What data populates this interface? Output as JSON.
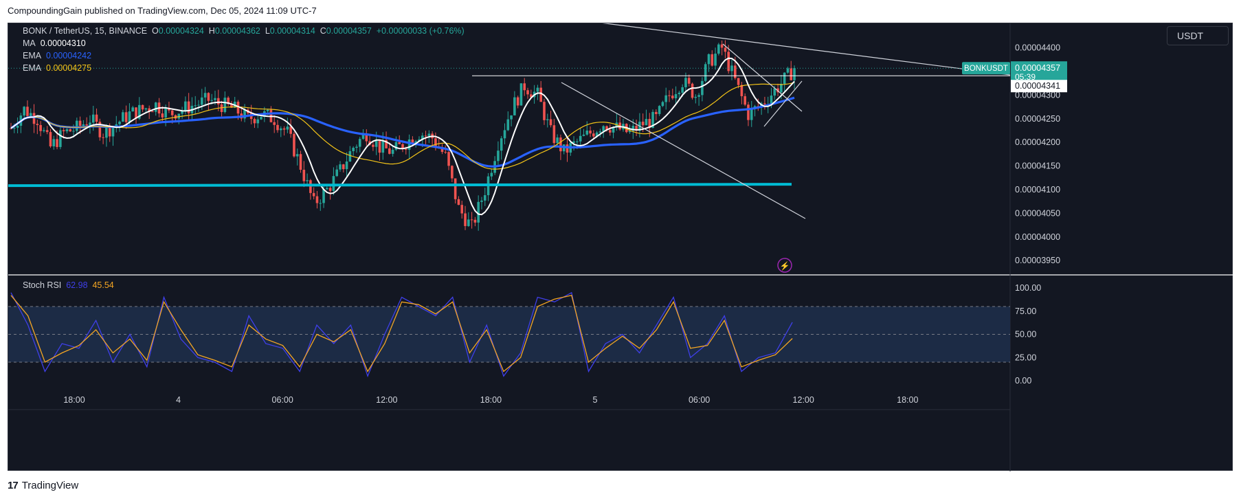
{
  "header": {
    "publisher_line": "CompoundingGain published on TradingView.com, Dec 05, 2024 11:09 UTC-7"
  },
  "footer": {
    "brand_label": "TradingView",
    "logo_glyph": "17"
  },
  "toolbar": {
    "currency_label": "USDT"
  },
  "legend": {
    "symbol": "BONK / TetherUS, 15, BINANCE",
    "o_label": "O",
    "o_value": "0.00004324",
    "h_label": "H",
    "h_value": "0.00004362",
    "l_label": "L",
    "l_value": "0.00004314",
    "c_label": "C",
    "c_value": "0.00004357",
    "change": "+0.00000033 (+0.76%)",
    "ma_label": "MA",
    "ma_value": "0.00004310",
    "ema1_label": "EMA",
    "ema1_value": "0.00004242",
    "ema2_label": "EMA",
    "ema2_value": "0.00004275",
    "stoch_label": "Stoch RSI",
    "stoch_k": "62.98",
    "stoch_d": "45.54"
  },
  "price_tags": {
    "symbol_tag": "BONKUSDT",
    "last_price": "0.00004357",
    "countdown": "05:39",
    "line_price": "0.00004341"
  },
  "colors": {
    "background": "#131722",
    "up": "#26a69a",
    "down": "#ef5350",
    "ma": "#ffffff",
    "ema_fast": "#2962ff",
    "ema_slow": "#f5c518",
    "support": "#00bcd4",
    "stoch_k": "#3f3fe8",
    "stoch_d": "#f5a623",
    "stoch_band": "#1c2b45"
  },
  "chart_data": [
    {
      "type": "candlestick",
      "title": "BONK / TetherUS, 15, BINANCE",
      "y_axis_ticks": [
        "0.00004400",
        "0.00004350",
        "0.00004300",
        "0.00004250",
        "0.00004200",
        "0.00004150",
        "0.00004100",
        "0.00004050",
        "0.00004000",
        "0.00003950"
      ],
      "x_axis_ticks": [
        "18:00",
        "4",
        "06:00",
        "12:00",
        "18:00",
        "5",
        "06:00",
        "12:00",
        "18:00"
      ],
      "ylim": [
        3.93e-05,
        4.43e-05
      ],
      "series": [
        {
          "name": "MA",
          "last_value": 4.31e-05
        },
        {
          "name": "EMA",
          "last_value": 4.242e-05
        },
        {
          "name": "EMA",
          "last_value": 4.275e-05
        }
      ],
      "last_close": 4.357e-05,
      "horizontal_levels": [
        4.341e-05,
        4.11e-05
      ],
      "close_path": [
        [
          0,
          4.23
        ],
        [
          4,
          4.27
        ],
        [
          8,
          4.25
        ],
        [
          12,
          4.19
        ],
        [
          16,
          4.22
        ],
        [
          20,
          4.23
        ],
        [
          24,
          4.25
        ],
        [
          28,
          4.22
        ],
        [
          32,
          4.24
        ],
        [
          36,
          4.26
        ],
        [
          40,
          4.27
        ],
        [
          44,
          4.28
        ],
        [
          48,
          4.26
        ],
        [
          52,
          4.27
        ],
        [
          56,
          4.28
        ],
        [
          60,
          4.29
        ],
        [
          64,
          4.28
        ],
        [
          68,
          4.27
        ],
        [
          72,
          4.25
        ],
        [
          76,
          4.26
        ],
        [
          80,
          4.25
        ],
        [
          84,
          4.22
        ],
        [
          88,
          4.15
        ],
        [
          92,
          4.07
        ],
        [
          96,
          4.1
        ],
        [
          100,
          4.14
        ],
        [
          104,
          4.19
        ],
        [
          108,
          4.22
        ],
        [
          112,
          4.19
        ],
        [
          116,
          4.18
        ],
        [
          120,
          4.2
        ],
        [
          124,
          4.22
        ],
        [
          128,
          4.21
        ],
        [
          132,
          4.17
        ],
        [
          136,
          4.06
        ],
        [
          140,
          4.02
        ],
        [
          144,
          4.1
        ],
        [
          148,
          4.2
        ],
        [
          152,
          4.27
        ],
        [
          156,
          4.32
        ],
        [
          160,
          4.3
        ],
        [
          164,
          4.22
        ],
        [
          168,
          4.18
        ],
        [
          172,
          4.2
        ],
        [
          176,
          4.22
        ],
        [
          180,
          4.24
        ],
        [
          184,
          4.23
        ],
        [
          188,
          4.22
        ],
        [
          192,
          4.24
        ],
        [
          196,
          4.25
        ],
        [
          200,
          4.3
        ],
        [
          204,
          4.33
        ],
        [
          208,
          4.3
        ],
        [
          212,
          4.37
        ],
        [
          216,
          4.4
        ],
        [
          220,
          4.33
        ],
        [
          224,
          4.26
        ],
        [
          228,
          4.28
        ],
        [
          232,
          4.31
        ],
        [
          236,
          4.34
        ],
        [
          238,
          4.357
        ]
      ],
      "y_unit_note": "close_path y values are price x 10^5"
    },
    {
      "type": "line",
      "title": "Stoch RSI",
      "y_axis_ticks": [
        "100.00",
        "75.00",
        "50.00",
        "25.00",
        "0.00"
      ],
      "band": [
        20,
        80
      ],
      "ylim": [
        0,
        100
      ],
      "series": [
        {
          "name": "",
          "last_value": 62.98,
          "points": [
            [
              0,
              95
            ],
            [
              6,
              60
            ],
            [
              12,
              10
            ],
            [
              18,
              40
            ],
            [
              24,
              35
            ],
            [
              30,
              65
            ],
            [
              36,
              20
            ],
            [
              42,
              50
            ],
            [
              48,
              15
            ],
            [
              54,
              90
            ],
            [
              60,
              45
            ],
            [
              66,
              25
            ],
            [
              72,
              20
            ],
            [
              78,
              10
            ],
            [
              84,
              70
            ],
            [
              90,
              40
            ],
            [
              96,
              35
            ],
            [
              102,
              10
            ],
            [
              108,
              60
            ],
            [
              114,
              40
            ],
            [
              120,
              60
            ],
            [
              126,
              5
            ],
            [
              132,
              50
            ],
            [
              138,
              90
            ],
            [
              144,
              80
            ],
            [
              150,
              70
            ],
            [
              156,
              90
            ],
            [
              162,
              20
            ],
            [
              168,
              60
            ],
            [
              174,
              5
            ],
            [
              180,
              30
            ],
            [
              186,
              90
            ],
            [
              192,
              85
            ],
            [
              198,
              95
            ],
            [
              204,
              10
            ],
            [
              210,
              40
            ],
            [
              216,
              50
            ],
            [
              222,
              30
            ],
            [
              228,
              60
            ],
            [
              234,
              90
            ],
            [
              240,
              25
            ],
            [
              246,
              40
            ],
            [
              252,
              70
            ],
            [
              258,
              10
            ],
            [
              264,
              25
            ],
            [
              270,
              30
            ],
            [
              276,
              62.98
            ]
          ]
        },
        {
          "name": "",
          "last_value": 45.54,
          "points": [
            [
              0,
              92
            ],
            [
              6,
              70
            ],
            [
              12,
              20
            ],
            [
              18,
              30
            ],
            [
              24,
              38
            ],
            [
              30,
              55
            ],
            [
              36,
              30
            ],
            [
              42,
              45
            ],
            [
              48,
              22
            ],
            [
              54,
              85
            ],
            [
              60,
              55
            ],
            [
              66,
              28
            ],
            [
              72,
              22
            ],
            [
              78,
              15
            ],
            [
              84,
              60
            ],
            [
              90,
              45
            ],
            [
              96,
              38
            ],
            [
              102,
              15
            ],
            [
              108,
              50
            ],
            [
              114,
              42
            ],
            [
              120,
              55
            ],
            [
              126,
              10
            ],
            [
              132,
              40
            ],
            [
              138,
              85
            ],
            [
              144,
              82
            ],
            [
              150,
              72
            ],
            [
              156,
              85
            ],
            [
              162,
              30
            ],
            [
              168,
              55
            ],
            [
              174,
              10
            ],
            [
              180,
              25
            ],
            [
              186,
              80
            ],
            [
              192,
              88
            ],
            [
              198,
              92
            ],
            [
              204,
              20
            ],
            [
              210,
              35
            ],
            [
              216,
              48
            ],
            [
              222,
              35
            ],
            [
              228,
              55
            ],
            [
              234,
              85
            ],
            [
              240,
              35
            ],
            [
              246,
              38
            ],
            [
              252,
              65
            ],
            [
              258,
              15
            ],
            [
              264,
              22
            ],
            [
              270,
              28
            ],
            [
              276,
              45.54
            ]
          ]
        }
      ]
    }
  ]
}
